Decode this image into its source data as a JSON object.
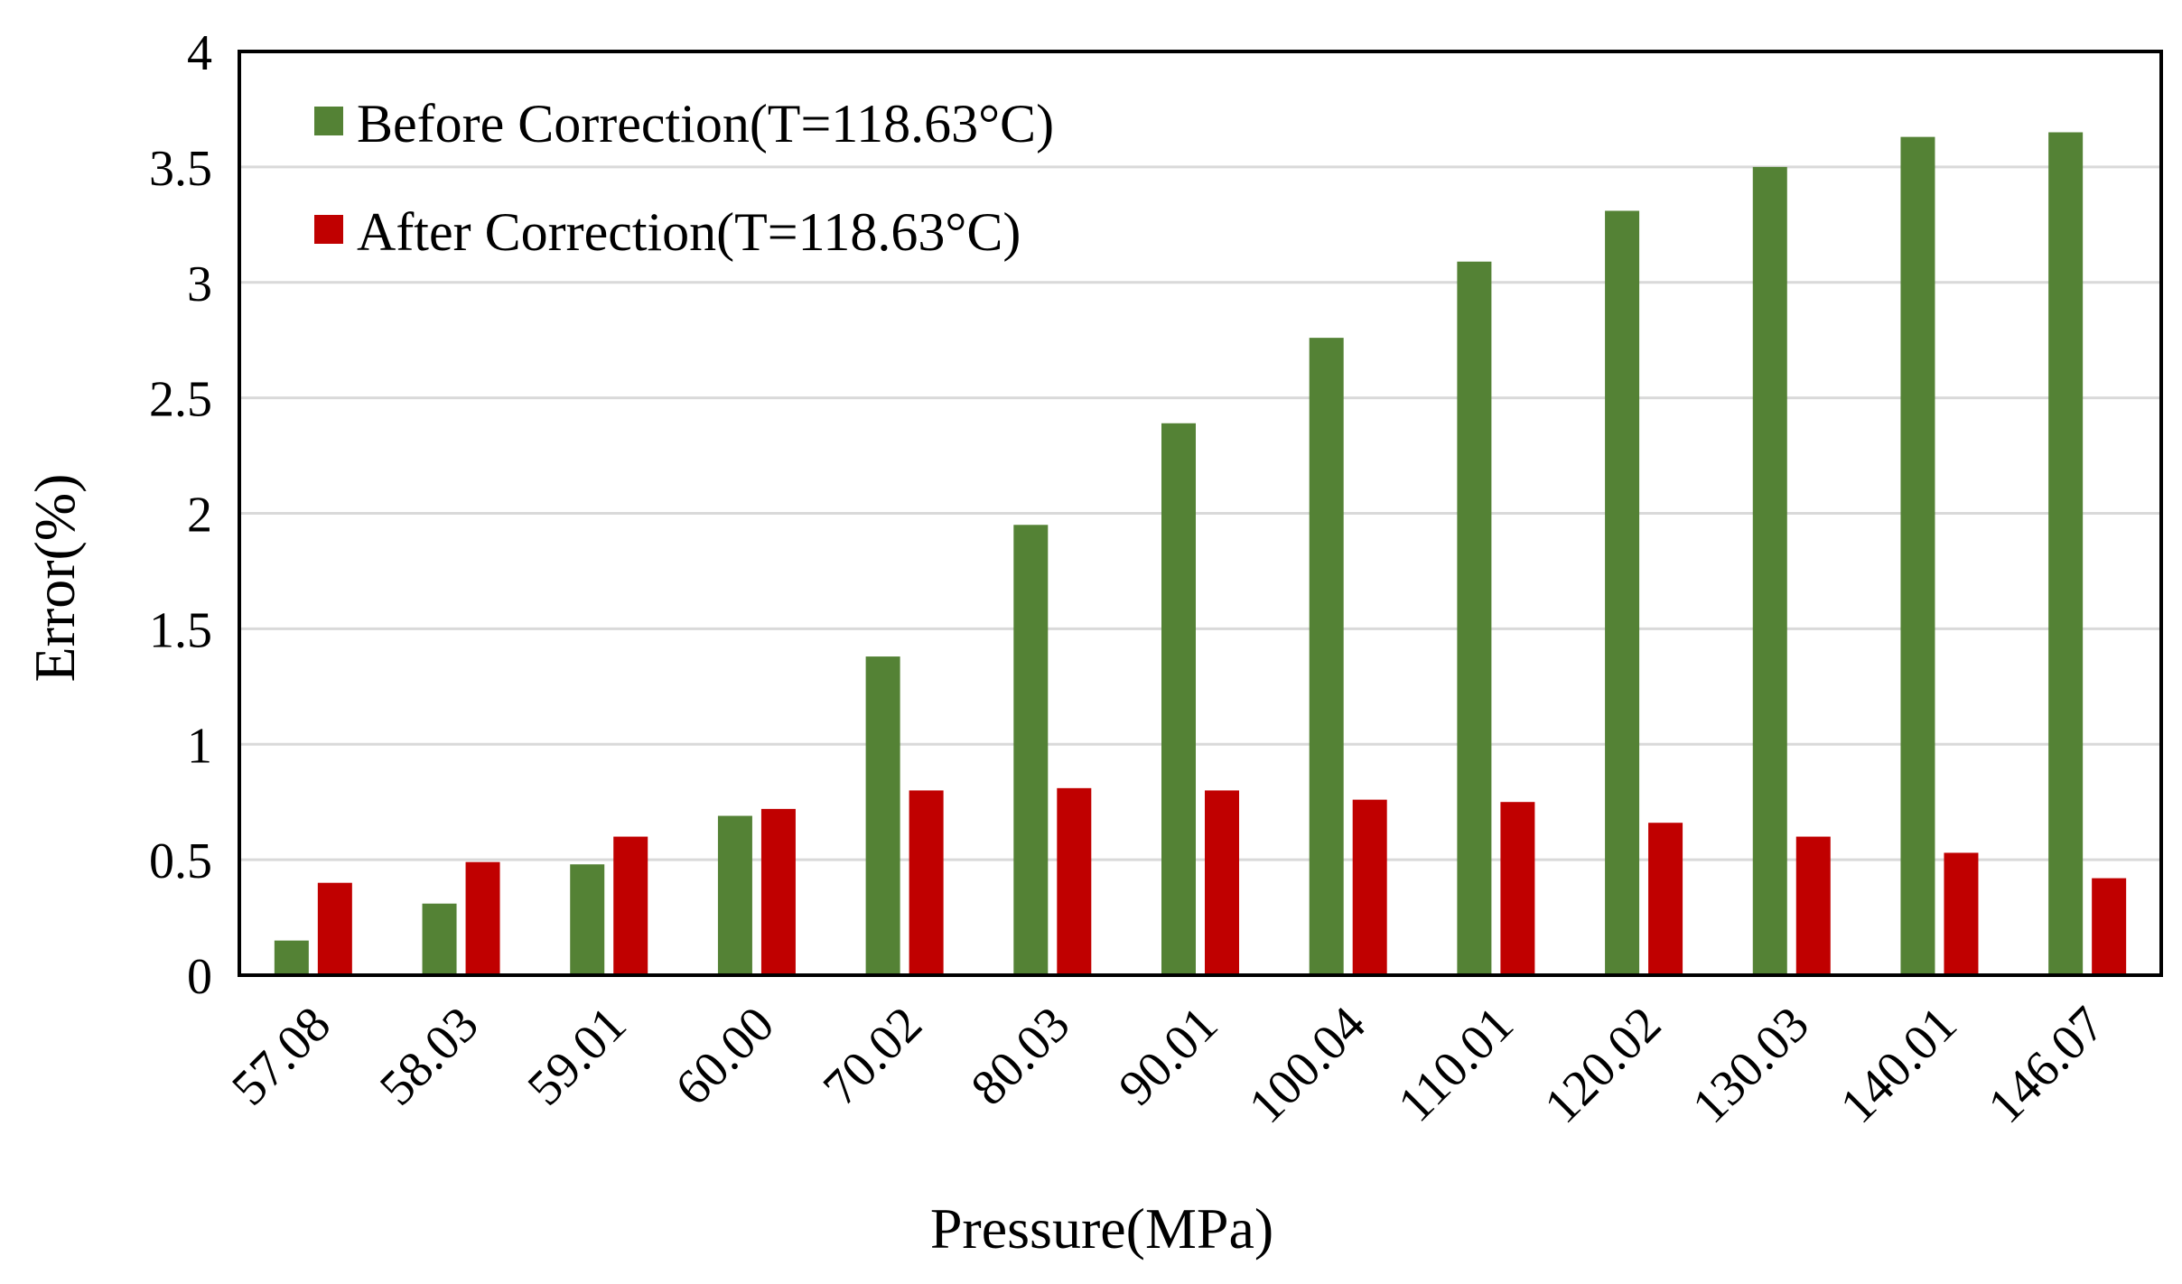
{
  "chart_data": {
    "type": "bar",
    "title": "",
    "xlabel": "Pressure(MPa)",
    "ylabel": "Error(%)",
    "ylim": [
      0,
      4
    ],
    "yticks": [
      "0",
      "0.5",
      "1",
      "1.5",
      "2",
      "2.5",
      "3",
      "3.5",
      "4"
    ],
    "categories": [
      "57.08",
      "58.03",
      "59.01",
      "60.00",
      "70.02",
      "80.03",
      "90.01",
      "100.04",
      "110.01",
      "120.02",
      "130.03",
      "140.01",
      "146.07"
    ],
    "series": [
      {
        "name": "Before Correction(T=118.63°C)",
        "color": "#548235",
        "values": [
          0.15,
          0.31,
          0.48,
          0.69,
          1.38,
          1.95,
          2.39,
          2.76,
          3.09,
          3.31,
          3.5,
          3.63,
          3.65
        ]
      },
      {
        "name": "After Correction(T=118.63°C)",
        "color": "#C00000",
        "values": [
          0.4,
          0.49,
          0.6,
          0.72,
          0.8,
          0.81,
          0.8,
          0.76,
          0.75,
          0.66,
          0.6,
          0.53,
          0.42
        ]
      }
    ],
    "grid": true,
    "legend_position": "top-left"
  }
}
